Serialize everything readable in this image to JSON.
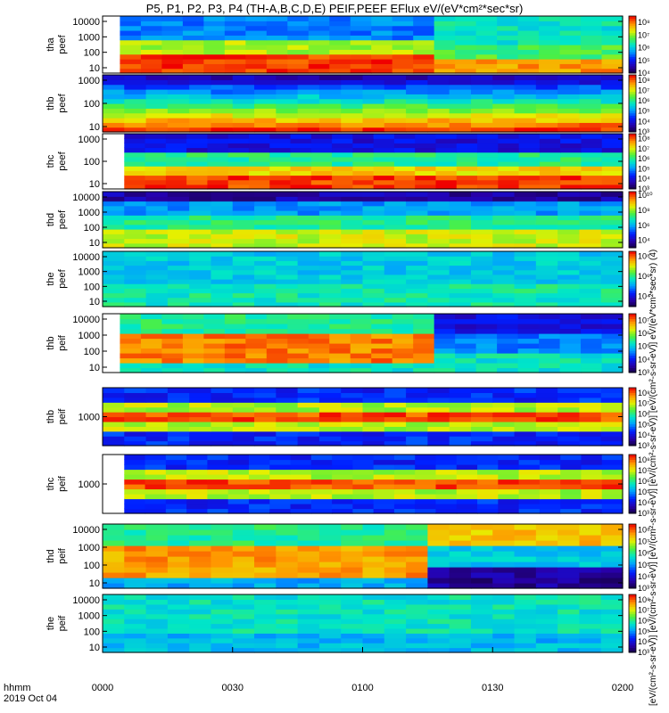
{
  "title": "P5, P1, P2, P3, P4 (TH-A,B,C,D,E) PEIF,PEEF EFlux eV/(eV*cm²*sec*sr)",
  "colorbar_label": "[eV/(cm²-s-sr-eV)] [eV/(cm²-s-sr-eV)] [eV/(cm²-s-sr-eV)] [eV/(cm²-s-sr-eV)] [eV/(cm²-s-sr-eV)] eV/(eV*cm²*sec*sr) (4)",
  "time_axis": {
    "unit_label": "hhmm",
    "date_label": "2019 Oct 04",
    "ticks": [
      "0000",
      "0030",
      "0100",
      "0130",
      "0200"
    ]
  },
  "chart_data": {
    "type": "heatmap",
    "x_range_minutes": [
      0,
      120
    ],
    "panels": [
      {
        "name": "tha peef",
        "line1": "tha",
        "line2": "peef",
        "yticks": [
          "10",
          "100",
          "1000",
          "10000"
        ],
        "cbar": [
          "10⁴",
          "10⁵",
          "10⁶",
          "10⁷",
          "10⁸"
        ],
        "cb_min": 4,
        "cb_max": 8.5,
        "data_start_min": 4
      },
      {
        "name": "thb peef",
        "line1": "thb",
        "line2": "peef",
        "yticks": [
          "10",
          "100",
          "1000"
        ],
        "cbar": [
          "10³",
          "10⁴",
          "10⁵",
          "10⁶",
          "10⁷",
          "10⁸"
        ],
        "cb_min": 3,
        "cb_max": 8.5,
        "data_start_min": 0
      },
      {
        "name": "thc peef",
        "line1": "thc",
        "line2": "peef",
        "yticks": [
          "10",
          "100",
          "1000"
        ],
        "cbar": [
          "10³",
          "10⁴",
          "10⁵",
          "10⁶",
          "10⁷",
          "10⁸"
        ],
        "cb_min": 3,
        "cb_max": 8.5,
        "data_start_min": 5
      },
      {
        "name": "thd peef",
        "line1": "thd",
        "line2": "peef",
        "yticks": [
          "10",
          "100",
          "1000",
          "10000"
        ],
        "cbar": [
          "10⁴",
          "10⁶",
          "10⁸",
          "10¹⁰"
        ],
        "cb_min": 3,
        "cb_max": 10.5,
        "data_start_min": 0
      },
      {
        "name": "the peef",
        "line1": "the",
        "line2": "peef",
        "yticks": [
          "10",
          "100",
          "1000",
          "10000"
        ],
        "cbar": [
          "10⁴",
          "10⁶",
          "10⁸"
        ],
        "cb_min": 3,
        "cb_max": 8.5,
        "data_start_min": 0
      },
      {
        "name": "thb peif top",
        "line1": "thb",
        "line2": "peif",
        "yticks": [
          "10",
          "100",
          "1000",
          "10000"
        ],
        "cbar": [
          "10³",
          "10⁴",
          "10⁵",
          "10⁶",
          "10⁷"
        ],
        "cb_min": 3,
        "cb_max": 7.5,
        "data_start_min": 4
      },
      {
        "name": "thb peif",
        "line1": "thb",
        "line2": "peif",
        "yticks": [
          "1000"
        ],
        "cbar": [
          "10³",
          "10⁴",
          "10⁵",
          "10⁶",
          "10⁷",
          "10⁸"
        ],
        "cb_min": 3,
        "cb_max": 8.5,
        "data_start_min": 0
      },
      {
        "name": "thc peif",
        "line1": "thc",
        "line2": "peif",
        "yticks": [
          "1000"
        ],
        "cbar": [
          "10³",
          "10⁴",
          "10⁵",
          "10⁶",
          "10⁷",
          "10⁸"
        ],
        "cb_min": 3,
        "cb_max": 8.5,
        "data_start_min": 5
      },
      {
        "name": "thd peif",
        "line1": "thd",
        "line2": "peif",
        "yticks": [
          "10",
          "100",
          "1000",
          "10000"
        ],
        "cbar": [
          "10³",
          "10⁴",
          "10⁵",
          "10⁶",
          "10⁷",
          "10⁸"
        ],
        "cb_min": 3,
        "cb_max": 8.5,
        "data_start_min": 0
      },
      {
        "name": "the peif",
        "line1": "the",
        "line2": "peif",
        "yticks": [
          "10",
          "100",
          "1000",
          "10000"
        ],
        "cbar": [
          "10³",
          "10⁴",
          "10⁵",
          "10⁶",
          "10⁷",
          "10⁸"
        ],
        "cb_min": 3,
        "cb_max": 8.5,
        "data_start_min": 0
      }
    ]
  }
}
